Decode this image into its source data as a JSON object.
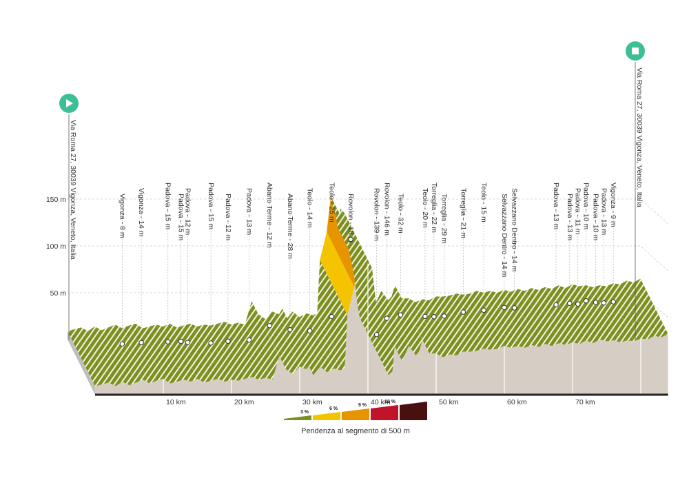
{
  "chart_data": {
    "type": "area",
    "subtype": "3d-elevation-profile",
    "xlabel": "",
    "ylabel": "",
    "x_unit": "km",
    "y_unit": "m",
    "xlim": [
      0,
      84
    ],
    "ylim": [
      0,
      170
    ],
    "x_ticks": [
      {
        "value": 10,
        "label": "10 km"
      },
      {
        "value": 20,
        "label": "20 km"
      },
      {
        "value": 30,
        "label": "30 km"
      },
      {
        "value": 40,
        "label": "40 km"
      },
      {
        "value": 50,
        "label": "50 km"
      },
      {
        "value": 60,
        "label": "60 km"
      },
      {
        "value": 70,
        "label": "70 km"
      }
    ],
    "y_ticks": [
      {
        "value": 50,
        "label": "50 m"
      },
      {
        "value": 100,
        "label": "100 m"
      },
      {
        "value": 150,
        "label": "150 m"
      }
    ],
    "grid": true,
    "start": {
      "km": 0,
      "label": "Via Roma 27, 30039 Vigonza, Veneto, Italia",
      "icon": "play-icon",
      "color": "#3dbf95"
    },
    "finish": {
      "km": 84,
      "label": "Via Roma 27, 30039 Vigonza, Veneto, Italia",
      "icon": "stop-icon",
      "color": "#3dbf95"
    },
    "profile": [
      [
        0,
        9
      ],
      [
        1,
        11
      ],
      [
        2,
        13
      ],
      [
        3,
        9
      ],
      [
        4,
        14
      ],
      [
        5,
        10
      ],
      [
        6,
        13
      ],
      [
        7,
        16
      ],
      [
        8,
        12
      ],
      [
        9,
        15
      ],
      [
        10,
        17
      ],
      [
        11,
        12
      ],
      [
        12,
        14
      ],
      [
        13,
        16
      ],
      [
        14,
        14
      ],
      [
        15,
        17
      ],
      [
        16,
        13
      ],
      [
        17,
        15
      ],
      [
        18,
        17
      ],
      [
        19,
        14
      ],
      [
        20,
        16
      ],
      [
        21,
        15
      ],
      [
        22,
        17
      ],
      [
        23,
        19
      ],
      [
        24,
        16
      ],
      [
        25,
        18
      ],
      [
        26,
        16
      ],
      [
        27,
        41
      ],
      [
        28,
        27
      ],
      [
        29,
        22
      ],
      [
        30,
        30
      ],
      [
        31,
        27
      ],
      [
        31.5,
        33
      ],
      [
        32,
        21
      ],
      [
        33,
        30
      ],
      [
        34,
        24
      ],
      [
        35,
        28
      ],
      [
        36,
        26
      ],
      [
        36.6,
        28
      ],
      [
        37,
        85
      ],
      [
        38,
        115
      ],
      [
        38.6,
        153
      ],
      [
        38.8,
        143
      ],
      [
        39.3,
        134
      ],
      [
        39.6,
        120
      ],
      [
        40,
        140
      ],
      [
        40.6,
        135
      ],
      [
        41.2,
        97
      ],
      [
        42,
        70
      ],
      [
        42.5,
        37
      ],
      [
        42.8,
        25
      ],
      [
        43,
        21
      ],
      [
        43.6,
        25
      ],
      [
        44,
        58
      ],
      [
        45,
        36
      ],
      [
        46,
        52
      ],
      [
        47,
        42
      ],
      [
        47.5,
        46
      ],
      [
        48,
        58
      ],
      [
        49,
        44
      ],
      [
        50,
        44
      ],
      [
        51,
        40
      ],
      [
        52,
        43
      ],
      [
        53,
        42
      ],
      [
        54,
        46
      ],
      [
        55,
        46
      ],
      [
        56,
        47
      ],
      [
        57,
        49
      ],
      [
        58,
        48
      ],
      [
        59,
        49
      ],
      [
        60,
        52
      ],
      [
        61,
        50
      ],
      [
        62,
        52
      ],
      [
        63,
        50
      ],
      [
        64,
        53
      ],
      [
        65,
        51
      ],
      [
        66,
        54
      ],
      [
        67,
        52
      ],
      [
        68,
        55
      ],
      [
        69,
        53
      ],
      [
        70,
        56
      ],
      [
        71,
        54
      ],
      [
        72,
        58
      ],
      [
        73,
        55
      ],
      [
        74,
        59
      ],
      [
        75,
        57
      ],
      [
        76,
        58
      ],
      [
        77,
        56
      ],
      [
        78,
        58
      ],
      [
        79,
        57
      ],
      [
        80,
        60
      ],
      [
        81,
        59
      ],
      [
        82,
        63
      ],
      [
        83,
        61
      ],
      [
        84,
        65
      ]
    ],
    "gradient_segments": [
      {
        "from": 37,
        "to": 37.6,
        "gradient_class": "6%"
      },
      {
        "from": 37.6,
        "to": 38.0,
        "gradient_class": "6%"
      },
      {
        "from": 38.0,
        "to": 38.3,
        "gradient_class": "9%"
      },
      {
        "from": 38.3,
        "to": 38.6,
        "gradient_class": "9%"
      }
    ],
    "waypoints": [
      {
        "km": 6,
        "label": "Vigonza - 8 m"
      },
      {
        "km": 8.8,
        "label": "Vigonza - 14 m"
      },
      {
        "km": 12.7,
        "label": "Padova - 15 m"
      },
      {
        "km": 14.6,
        "label": "Padova - 15 m"
      },
      {
        "km": 15.6,
        "label": "Padova - 12 m"
      },
      {
        "km": 19.0,
        "label": "Padova - 15 m"
      },
      {
        "km": 21.5,
        "label": "Padova - 12 m"
      },
      {
        "km": 24.6,
        "label": "Padova - 13 m"
      },
      {
        "km": 27.6,
        "label": "Abano Terme - 12 m"
      },
      {
        "km": 30.6,
        "label": "Abano Terme - 28 m"
      },
      {
        "km": 33.5,
        "label": "Teolo - 14 m"
      },
      {
        "km": 36.7,
        "label": "Teolo - 25 m"
      },
      {
        "km": 39.5,
        "label": "Rovolon - 18 m"
      },
      {
        "km": 43.3,
        "label": "Rovolon - 139 m"
      },
      {
        "km": 44.8,
        "label": "Rovolon - 146 m"
      },
      {
        "km": 46.8,
        "label": "Teolo - 32 m"
      },
      {
        "km": 50.4,
        "label": "Teolo - 20 m"
      },
      {
        "km": 51.7,
        "label": "Torreglia - 22 m"
      },
      {
        "km": 53.2,
        "label": "Torreglia - 29 m"
      },
      {
        "km": 56.0,
        "label": "Torreglia - 21 m"
      },
      {
        "km": 59.0,
        "label": "Teolo - 15 m"
      },
      {
        "km": 62.0,
        "label": "Selvazzano Dentro - 14 m"
      },
      {
        "km": 63.5,
        "label": "Selvazzano Dentro - 14 m"
      },
      {
        "km": 69.6,
        "label": "Padova - 13 m"
      },
      {
        "km": 71.6,
        "label": "Padova - 13 m"
      },
      {
        "km": 72.8,
        "label": "Padova - 11 m"
      },
      {
        "km": 74.0,
        "label": "Padova - 10 m"
      },
      {
        "km": 75.4,
        "label": "Padova - 10 m"
      },
      {
        "km": 76.6,
        "label": "Padova - 13 m"
      },
      {
        "km": 78.0,
        "label": "Vigonza - 9 m"
      }
    ]
  },
  "legend": {
    "caption": "Pendenza al segmento di 500 m",
    "steps": [
      {
        "label": "3 %",
        "color": "#7d8f1e"
      },
      {
        "label": "6 %",
        "color": "#f5c400"
      },
      {
        "label": "9 %",
        "color": "#e69500"
      },
      {
        "label": "12 %",
        "color": "#c0142a"
      },
      {
        "label": "",
        "color": "#4a1010"
      }
    ]
  },
  "colors": {
    "terrain_side": "#d6cec4",
    "terrain_side_dark": "#bfbfbf",
    "flat_top": "#7d8f1e",
    "stripe": "#ffffff",
    "climb_light": "#f5c400",
    "climb_dark": "#e69500",
    "gridline": "#c8c8c8",
    "base": "#222222"
  }
}
